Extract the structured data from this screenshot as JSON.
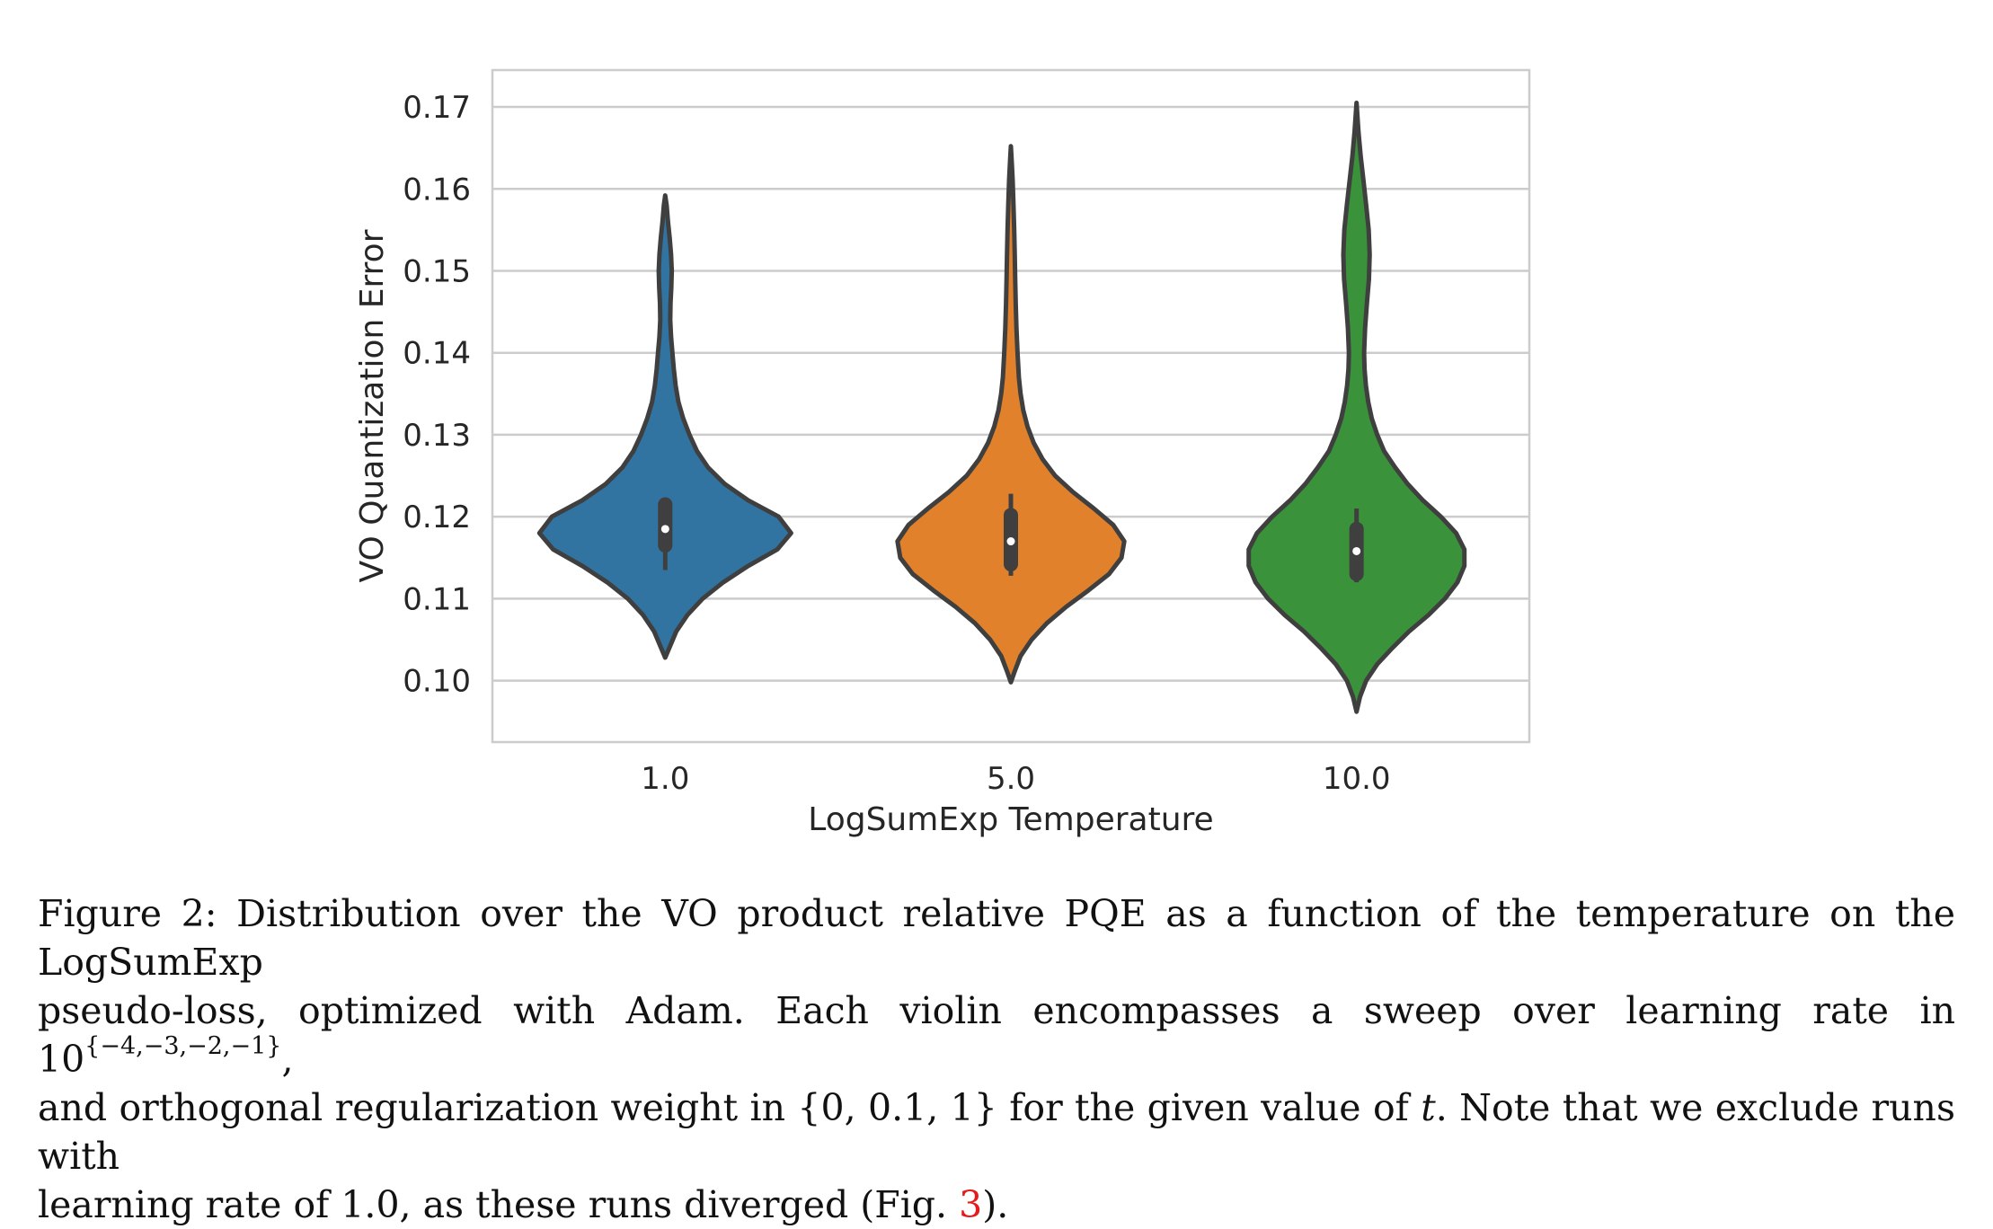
{
  "chart_data": {
    "type": "violin",
    "title": "",
    "xlabel": "LogSumExp Temperature",
    "ylabel": "VO Quantization Error",
    "ylim": [
      0.0925,
      0.1745
    ],
    "yticks": [
      0.1,
      0.11,
      0.12,
      0.13,
      0.14,
      0.15,
      0.16,
      0.17
    ],
    "ytick_labels": [
      "0.10",
      "0.11",
      "0.12",
      "0.13",
      "0.14",
      "0.15",
      "0.16",
      "0.17"
    ],
    "categories": [
      "1.0",
      "5.0",
      "10.0"
    ],
    "grid": true,
    "colors": [
      "#3274a1",
      "#e1812c",
      "#3a923a"
    ],
    "edge_color": "#3f3f3f",
    "violins": [
      {
        "category": "1.0",
        "min": 0.1028,
        "max": 0.1592,
        "median": 0.1185,
        "q1": 0.1165,
        "q3": 0.1215,
        "whisker_low": 0.1135,
        "whisker_high": 0.122,
        "profile": [
          [
            0.1028,
            0.0
          ],
          [
            0.104,
            0.03
          ],
          [
            0.106,
            0.08
          ],
          [
            0.108,
            0.16
          ],
          [
            0.11,
            0.27
          ],
          [
            0.112,
            0.42
          ],
          [
            0.114,
            0.6
          ],
          [
            0.116,
            0.81
          ],
          [
            0.118,
            0.91
          ],
          [
            0.12,
            0.82
          ],
          [
            0.122,
            0.6
          ],
          [
            0.124,
            0.43
          ],
          [
            0.126,
            0.31
          ],
          [
            0.128,
            0.23
          ],
          [
            0.13,
            0.175
          ],
          [
            0.132,
            0.13
          ],
          [
            0.134,
            0.095
          ],
          [
            0.136,
            0.075
          ],
          [
            0.138,
            0.062
          ],
          [
            0.14,
            0.052
          ],
          [
            0.142,
            0.042
          ],
          [
            0.144,
            0.036
          ],
          [
            0.146,
            0.038
          ],
          [
            0.148,
            0.044
          ],
          [
            0.15,
            0.047
          ],
          [
            0.152,
            0.042
          ],
          [
            0.154,
            0.032
          ],
          [
            0.156,
            0.02
          ],
          [
            0.158,
            0.01
          ],
          [
            0.1592,
            0.0
          ]
        ]
      },
      {
        "category": "5.0",
        "min": 0.0998,
        "max": 0.1652,
        "median": 0.117,
        "q1": 0.1142,
        "q3": 0.1202,
        "whisker_low": 0.1128,
        "whisker_high": 0.1228,
        "profile": [
          [
            0.0998,
            0.0
          ],
          [
            0.101,
            0.025
          ],
          [
            0.103,
            0.07
          ],
          [
            0.105,
            0.15
          ],
          [
            0.107,
            0.26
          ],
          [
            0.109,
            0.4
          ],
          [
            0.111,
            0.56
          ],
          [
            0.113,
            0.71
          ],
          [
            0.115,
            0.8
          ],
          [
            0.117,
            0.82
          ],
          [
            0.119,
            0.74
          ],
          [
            0.121,
            0.6
          ],
          [
            0.123,
            0.45
          ],
          [
            0.125,
            0.32
          ],
          [
            0.127,
            0.23
          ],
          [
            0.129,
            0.165
          ],
          [
            0.131,
            0.12
          ],
          [
            0.133,
            0.09
          ],
          [
            0.135,
            0.07
          ],
          [
            0.137,
            0.058
          ],
          [
            0.14,
            0.048
          ],
          [
            0.143,
            0.04
          ],
          [
            0.146,
            0.035
          ],
          [
            0.149,
            0.031
          ],
          [
            0.152,
            0.028
          ],
          [
            0.155,
            0.024
          ],
          [
            0.158,
            0.019
          ],
          [
            0.161,
            0.013
          ],
          [
            0.163,
            0.007
          ],
          [
            0.1652,
            0.0
          ]
        ]
      },
      {
        "category": "10.0",
        "min": 0.0962,
        "max": 0.1705,
        "median": 0.1158,
        "q1": 0.113,
        "q3": 0.1185,
        "whisker_low": 0.112,
        "whisker_high": 0.121,
        "profile": [
          [
            0.0962,
            0.0
          ],
          [
            0.098,
            0.025
          ],
          [
            0.1,
            0.07
          ],
          [
            0.102,
            0.15
          ],
          [
            0.104,
            0.26
          ],
          [
            0.106,
            0.38
          ],
          [
            0.108,
            0.52
          ],
          [
            0.11,
            0.64
          ],
          [
            0.112,
            0.73
          ],
          [
            0.114,
            0.78
          ],
          [
            0.116,
            0.78
          ],
          [
            0.118,
            0.72
          ],
          [
            0.12,
            0.61
          ],
          [
            0.122,
            0.48
          ],
          [
            0.124,
            0.37
          ],
          [
            0.126,
            0.28
          ],
          [
            0.128,
            0.2
          ],
          [
            0.13,
            0.15
          ],
          [
            0.132,
            0.11
          ],
          [
            0.134,
            0.085
          ],
          [
            0.136,
            0.068
          ],
          [
            0.138,
            0.058
          ],
          [
            0.14,
            0.055
          ],
          [
            0.143,
            0.062
          ],
          [
            0.146,
            0.075
          ],
          [
            0.149,
            0.09
          ],
          [
            0.152,
            0.095
          ],
          [
            0.155,
            0.088
          ],
          [
            0.158,
            0.07
          ],
          [
            0.161,
            0.05
          ],
          [
            0.164,
            0.03
          ],
          [
            0.167,
            0.014
          ],
          [
            0.1705,
            0.0
          ]
        ]
      }
    ]
  },
  "caption": {
    "line1": "Figure 2: Distribution over the VO product relative PQE as a function of the temperature on the LogSumExp",
    "line2_pre": "pseudo-loss, optimized with Adam. Each violin encompasses a sweep over learning rate in 10",
    "line2_sup": "{−4,−3,−2,−1}",
    "line2_post": ",",
    "line3_pre": "and orthogonal regularization weight in {0, 0.1, 1} for the given value of",
    "line3_var": "t",
    "line3_post": ". Note that we exclude runs with",
    "line4_pre": "learning rate of 1.0, as these runs diverged (Fig.",
    "line4_ref": "3",
    "line4_post": ")."
  }
}
